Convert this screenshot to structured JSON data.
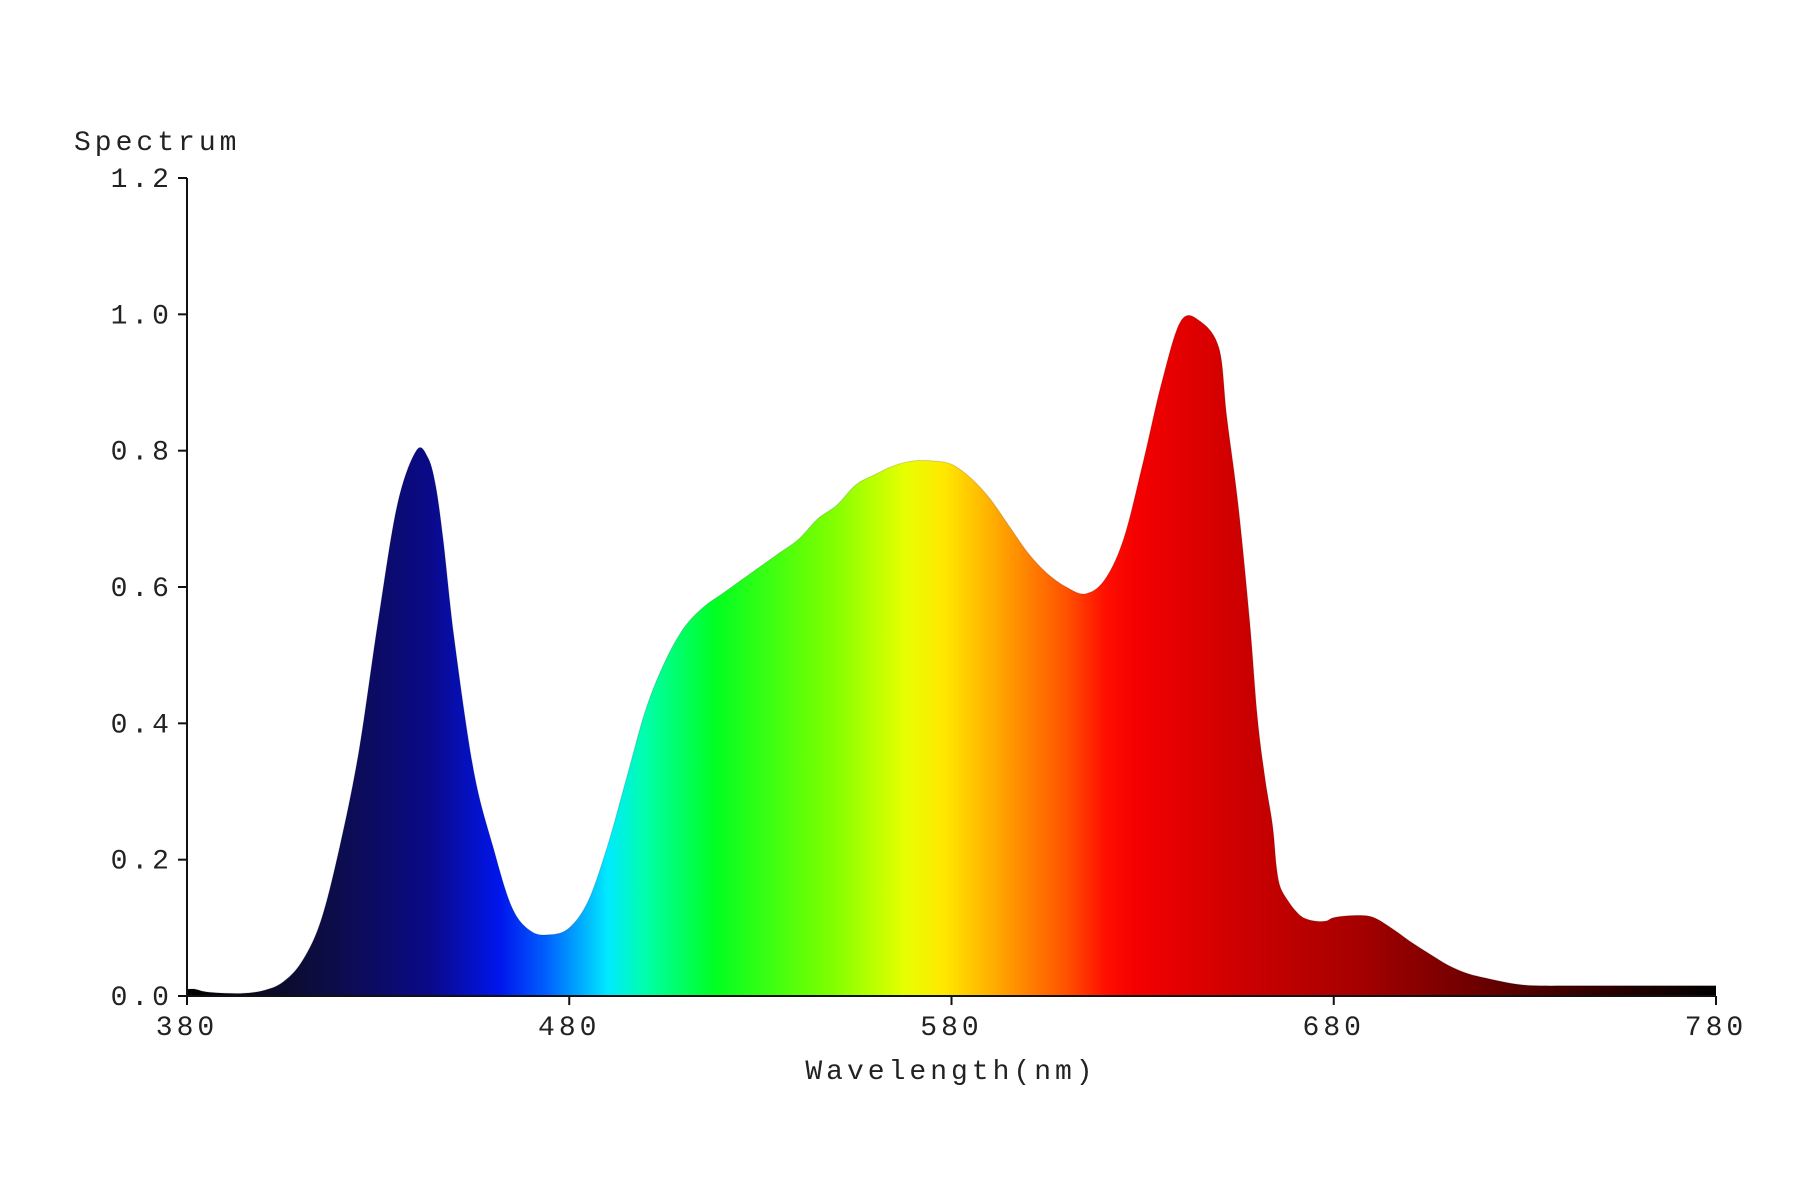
{
  "chart_data": {
    "type": "area",
    "title": "",
    "xlabel": "Wavelength(nm)",
    "ylabel": "Spectrum",
    "xlim": [
      380,
      780
    ],
    "ylim": [
      0,
      1.2
    ],
    "x_ticks": [
      "380",
      "480",
      "580",
      "680",
      "780"
    ],
    "y_ticks": [
      "0.0",
      "0.2",
      "0.4",
      "0.6",
      "0.8",
      "1.0",
      "1.2"
    ],
    "grid": false,
    "legend": "none",
    "fill": "visible-spectrum gradient",
    "series": [
      {
        "x": [
          380,
          382,
          385,
          390,
          395,
          400,
          405,
          410,
          415,
          420,
          425,
          430,
          435,
          440,
          443,
          445,
          447,
          450,
          455,
          460,
          465,
          470,
          475,
          480,
          485,
          490,
          495,
          500,
          505,
          510,
          515,
          520,
          525,
          530,
          535,
          540,
          545,
          550,
          555,
          560,
          565,
          570,
          575,
          580,
          585,
          590,
          595,
          600,
          605,
          610,
          615,
          620,
          625,
          630,
          635,
          640,
          645,
          650,
          652,
          655,
          658,
          660,
          662,
          664,
          665,
          666,
          668,
          670,
          672,
          675,
          678,
          680,
          685,
          690,
          695,
          700,
          705,
          710,
          715,
          720,
          725,
          730,
          735,
          740,
          745,
          750,
          755,
          760,
          765,
          770,
          775,
          780
        ],
        "y": [
          0.01,
          0.01,
          0.006,
          0.004,
          0.004,
          0.008,
          0.02,
          0.05,
          0.11,
          0.22,
          0.36,
          0.55,
          0.72,
          0.8,
          0.79,
          0.75,
          0.67,
          0.52,
          0.33,
          0.22,
          0.13,
          0.095,
          0.09,
          0.1,
          0.14,
          0.22,
          0.32,
          0.42,
          0.49,
          0.54,
          0.57,
          0.59,
          0.61,
          0.63,
          0.65,
          0.67,
          0.7,
          0.72,
          0.75,
          0.765,
          0.778,
          0.785,
          0.785,
          0.78,
          0.76,
          0.73,
          0.69,
          0.65,
          0.62,
          0.6,
          0.59,
          0.61,
          0.67,
          0.78,
          0.9,
          0.99,
          0.99,
          0.95,
          0.85,
          0.72,
          0.55,
          0.41,
          0.32,
          0.25,
          0.19,
          0.16,
          0.14,
          0.125,
          0.115,
          0.11,
          0.11,
          0.115,
          0.118,
          0.116,
          0.1,
          0.08,
          0.062,
          0.045,
          0.033,
          0.026,
          0.02,
          0.016,
          0.015,
          0.015,
          0.015,
          0.015,
          0.015,
          0.015,
          0.015,
          0.015,
          0.015,
          0.015
        ]
      }
    ]
  }
}
